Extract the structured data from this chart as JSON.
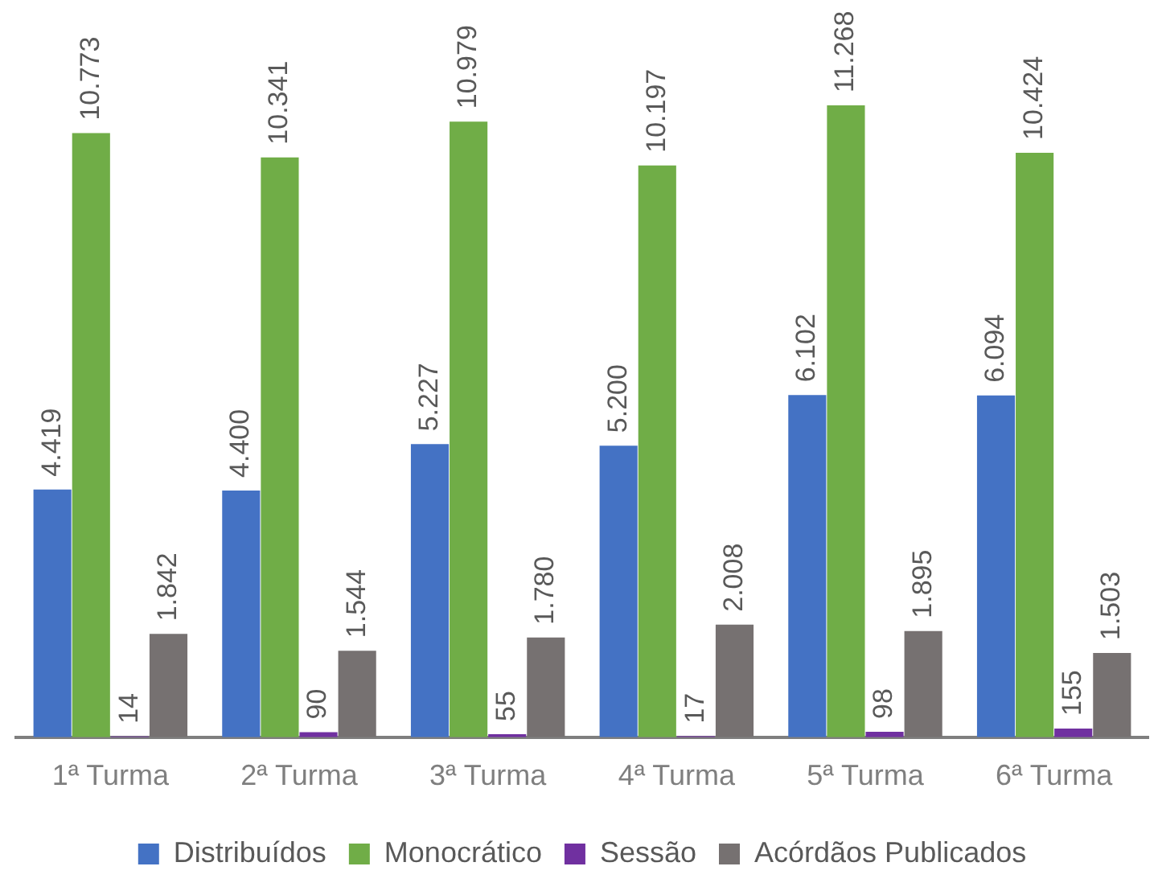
{
  "chart_data": {
    "type": "bar",
    "categories": [
      "1ª Turma",
      "2ª Turma",
      "3ª Turma",
      "4ª Turma",
      "5ª Turma",
      "6ª Turma"
    ],
    "series": [
      {
        "name": "Distribuídos",
        "color": "#4472c4",
        "values": [
          4419,
          4400,
          5227,
          5200,
          6102,
          6094
        ],
        "value_labels": [
          "4.419",
          "4.400",
          "5.227",
          "5.200",
          "6.102",
          "6.094"
        ]
      },
      {
        "name": "Monocrático",
        "color": "#70ad47",
        "values": [
          10773,
          10341,
          10979,
          10197,
          11268,
          10424
        ],
        "value_labels": [
          "10.773",
          "10.341",
          "10.979",
          "10.197",
          "11.268",
          "10.424"
        ]
      },
      {
        "name": "Sessão",
        "color": "#7030a0",
        "values": [
          14,
          90,
          55,
          17,
          98,
          155
        ],
        "value_labels": [
          "14",
          "90",
          "55",
          "17",
          "98",
          "155"
        ]
      },
      {
        "name": "Acórdãos Publicados",
        "color": "#767171",
        "values": [
          1842,
          1544,
          1780,
          2008,
          1895,
          1503
        ],
        "value_labels": [
          "1.842",
          "1.544",
          "1.780",
          "2.008",
          "1.895",
          "1.503"
        ]
      }
    ],
    "legend": "bottom",
    "grid": false
  }
}
